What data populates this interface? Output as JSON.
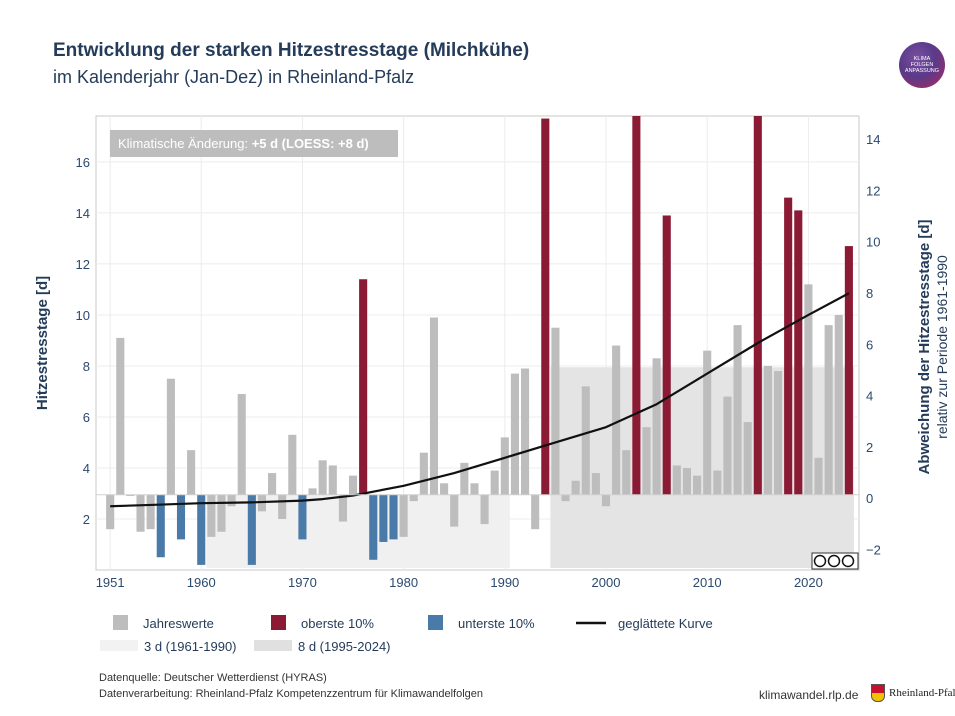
{
  "header": {
    "title": "Entwicklung der starken Hitzestresstage (Milchkühe)",
    "subtitle": "im Kalenderjahr (Jan-Dez) in Rheinland-Pfalz"
  },
  "logo": {
    "line1": "KLIMA",
    "line2": "FOLGEN",
    "line3": "ANPASSUNG"
  },
  "annotation": {
    "prefix": "Klimatische Änderung: ",
    "bold": "+5 d (LOESS: +8 d)"
  },
  "chart_data": {
    "type": "bar",
    "ylabel": "Hitzestresstage [d]",
    "y2label": "Abweichung der Hitzestresstage [d]",
    "y2sublabel": "relativ zur Periode 1961-1990",
    "ylim": [
      0,
      17.8
    ],
    "y2lim": [
      -2.8,
      14.9
    ],
    "xlim": [
      1949.6,
      2025.0
    ],
    "xticks": [
      1951,
      1960,
      1970,
      1980,
      1990,
      2000,
      2010,
      2020
    ],
    "yticks": [
      2,
      4,
      6,
      8,
      10,
      12,
      14,
      16
    ],
    "y2ticks": [
      -2,
      0,
      2,
      4,
      6,
      8,
      10,
      12,
      14
    ],
    "baseline": 2.95,
    "years": [
      1951,
      1952,
      1953,
      1954,
      1955,
      1956,
      1957,
      1958,
      1959,
      1960,
      1961,
      1962,
      1963,
      1964,
      1965,
      1966,
      1967,
      1968,
      1969,
      1970,
      1971,
      1972,
      1973,
      1974,
      1975,
      1976,
      1977,
      1978,
      1979,
      1980,
      1981,
      1982,
      1983,
      1984,
      1985,
      1986,
      1987,
      1988,
      1989,
      1990,
      1991,
      1992,
      1993,
      1994,
      1995,
      1996,
      1997,
      1998,
      1999,
      2000,
      2001,
      2002,
      2003,
      2004,
      2005,
      2006,
      2007,
      2008,
      2009,
      2010,
      2011,
      2012,
      2013,
      2014,
      2015,
      2016,
      2017,
      2018,
      2019,
      2020,
      2021,
      2022,
      2023,
      2024
    ],
    "values": [
      1.6,
      9.1,
      2.9,
      1.5,
      1.6,
      0.5,
      7.5,
      1.2,
      4.7,
      0.2,
      1.3,
      1.5,
      2.5,
      6.9,
      0.2,
      2.3,
      3.8,
      2.0,
      5.3,
      1.2,
      3.2,
      4.3,
      4.1,
      1.9,
      3.7,
      11.4,
      0.4,
      1.1,
      1.2,
      1.3,
      2.7,
      4.6,
      9.9,
      3.4,
      1.7,
      4.2,
      3.4,
      1.8,
      3.9,
      5.2,
      7.7,
      7.9,
      1.6,
      17.7,
      9.5,
      2.7,
      3.5,
      7.2,
      3.8,
      2.5,
      8.8,
      4.7,
      17.8,
      5.6,
      8.3,
      13.9,
      4.1,
      4.0,
      3.7,
      8.6,
      3.9,
      6.8,
      9.6,
      5.8,
      17.8,
      8.0,
      7.8,
      14.6,
      14.1,
      11.2,
      4.4,
      9.6,
      10.0,
      12.7
    ],
    "categories_color": {
      "top": [
        1976,
        1994,
        2003,
        2006,
        2015,
        2018,
        2019,
        2024
      ],
      "bottom": [
        1956,
        1958,
        1960,
        1965,
        1970,
        1977,
        1978,
        1979
      ]
    },
    "loess": {
      "x": [
        1951,
        1955,
        1960,
        1965,
        1970,
        1972,
        1975,
        1980,
        1985,
        1990,
        1995,
        2000,
        2005,
        2010,
        2015,
        2020,
        2024
      ],
      "y": [
        2.5,
        2.55,
        2.62,
        2.65,
        2.72,
        2.78,
        2.92,
        3.3,
        3.8,
        4.4,
        5.0,
        5.6,
        6.5,
        7.7,
        8.9,
        10.0,
        10.85
      ]
    },
    "periods": [
      {
        "label": "3 d (1961-1990)",
        "start": 1961,
        "end": 1990,
        "value": 2.95
      },
      {
        "label": "8 d (1995-2024)",
        "start": 1995,
        "end": 2024,
        "value": 7.95
      }
    ],
    "legend": [
      {
        "label": "Jahreswerte",
        "kind": "square",
        "color": "#bdbdbd"
      },
      {
        "label": "oberste 10%",
        "kind": "square",
        "color": "#8b1a35"
      },
      {
        "label": "unterste 10%",
        "kind": "square",
        "color": "#4a7aa8"
      },
      {
        "label": "geglättete Kurve",
        "kind": "line",
        "color": "#111111"
      },
      {
        "label": "3 d (1961-1990)",
        "kind": "band",
        "color": "#f2f2f2"
      },
      {
        "label": "8 d (1995-2024)",
        "kind": "band",
        "color": "#e0e0e0"
      }
    ],
    "colors": {
      "normal": "#bdbdbd",
      "top": "#8b1a35",
      "bottom": "#4a7aa8",
      "band1": "#f0f0f0",
      "band2": "#e4e4e4"
    }
  },
  "footer": {
    "source": "Datenquelle: Deutscher Wetterdienst (HYRAS)",
    "processing": "Datenverarbeitung: Rheinland-Pfalz Kompetenzzentrum für Klimawandelfolgen",
    "site": "klimawandel.rlp.de",
    "state": "Rheinland-Pfalz"
  }
}
